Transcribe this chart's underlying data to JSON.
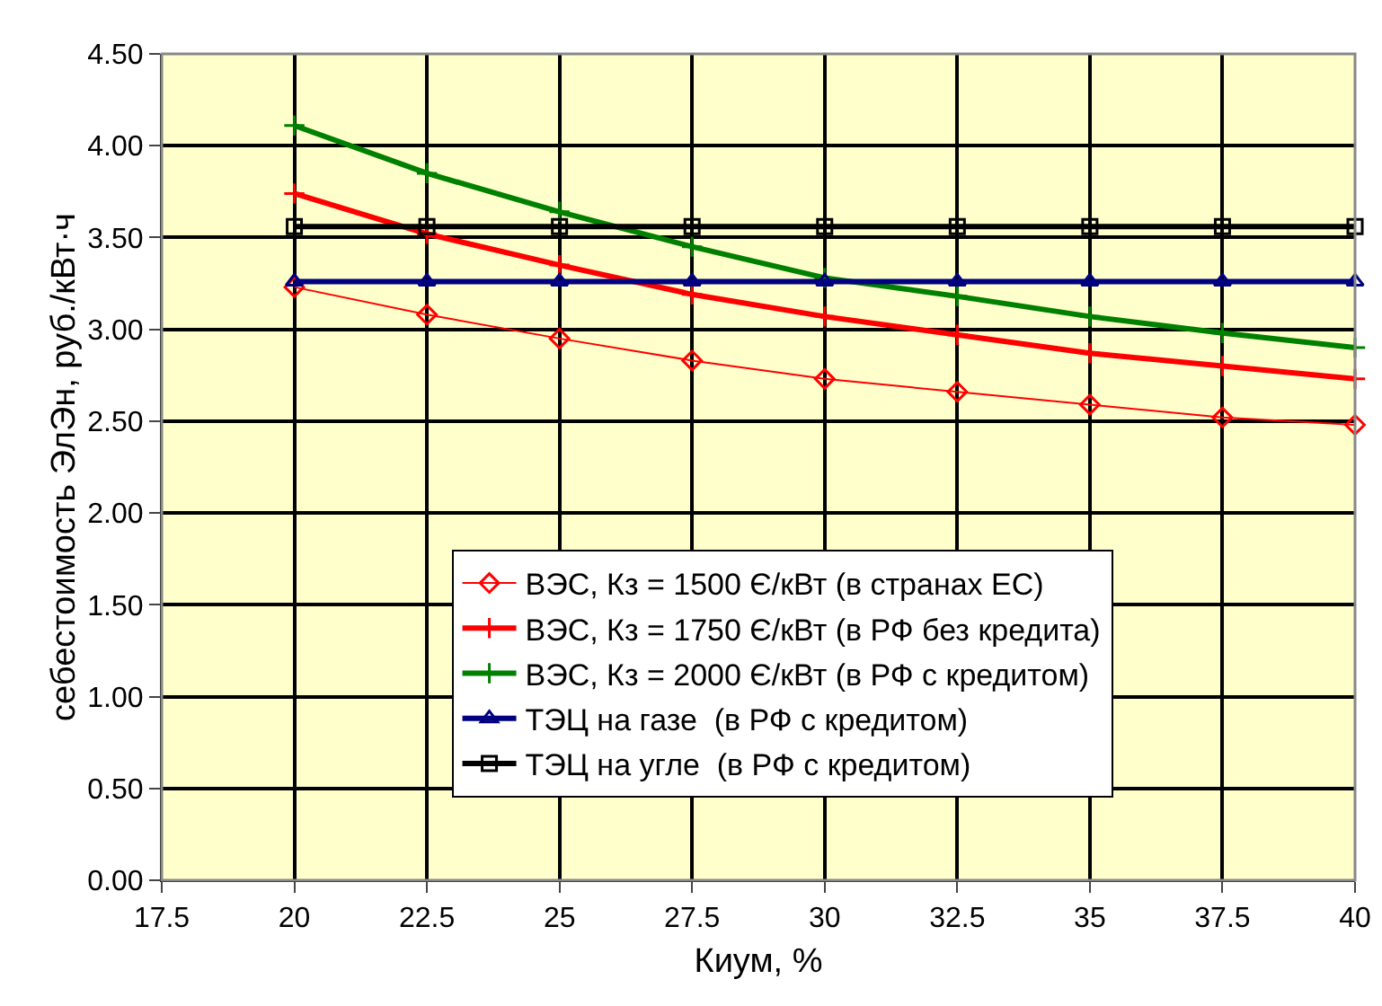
{
  "chart_data": {
    "type": "line",
    "xlabel": "Киум, %",
    "ylabel": "себестоимость ЭлЭн, руб./кВт·ч",
    "x": [
      20,
      22.5,
      25,
      27.5,
      30,
      32.5,
      35,
      37.5,
      40
    ],
    "series": [
      {
        "name": "ВЭС, Кз = 1500 Є/кВт (в странах ЕС)",
        "color": "#ff0000",
        "marker": "diamond",
        "values": [
          3.23,
          3.08,
          2.95,
          2.83,
          2.73,
          2.66,
          2.59,
          2.52,
          2.48
        ]
      },
      {
        "name": "ВЭС, Кз = 1750 Є/кВт (в РФ без кредита)",
        "color": "#ff0000",
        "marker": "cross",
        "values": [
          3.74,
          3.52,
          3.35,
          3.19,
          3.07,
          2.97,
          2.87,
          2.8,
          2.73
        ]
      },
      {
        "name": "ВЭС, Кз = 2000 Є/кВт (в РФ с кредитом)",
        "color": "#008000",
        "marker": "cross",
        "values": [
          4.11,
          3.85,
          3.64,
          3.45,
          3.28,
          3.18,
          3.07,
          2.98,
          2.9
        ]
      },
      {
        "name": "ТЭЦ на газе  (в РФ с кредитом)",
        "color": "#000080",
        "marker": "triangle",
        "values": [
          3.26,
          3.26,
          3.26,
          3.26,
          3.26,
          3.26,
          3.26,
          3.26,
          3.26
        ]
      },
      {
        "name": "ТЭЦ на угле  (в РФ с кредитом)",
        "color": "#000000",
        "marker": "square",
        "values": [
          3.56,
          3.56,
          3.56,
          3.56,
          3.56,
          3.56,
          3.56,
          3.56,
          3.56
        ]
      }
    ],
    "xlim": [
      17.5,
      40
    ],
    "xticks": [
      17.5,
      20,
      22.5,
      25,
      27.5,
      30,
      32.5,
      35,
      37.5,
      40
    ],
    "ylim": [
      0,
      4.5
    ],
    "yticks": [
      {
        "value": 0,
        "label": "0.00"
      },
      {
        "value": 0.5,
        "label": "0.50"
      },
      {
        "value": 1,
        "label": "1.00"
      },
      {
        "value": 1.5,
        "label": "1.50"
      },
      {
        "value": 2,
        "label": "2.00"
      },
      {
        "value": 2.5,
        "label": "2.50"
      },
      {
        "value": 3,
        "label": "3.00"
      },
      {
        "value": 3.5,
        "label": "3.50"
      },
      {
        "value": 4,
        "label": "4.00"
      },
      {
        "value": 4.5,
        "label": "4.50"
      }
    ],
    "grid": true,
    "legend": "bottom",
    "line_style": "solid"
  }
}
